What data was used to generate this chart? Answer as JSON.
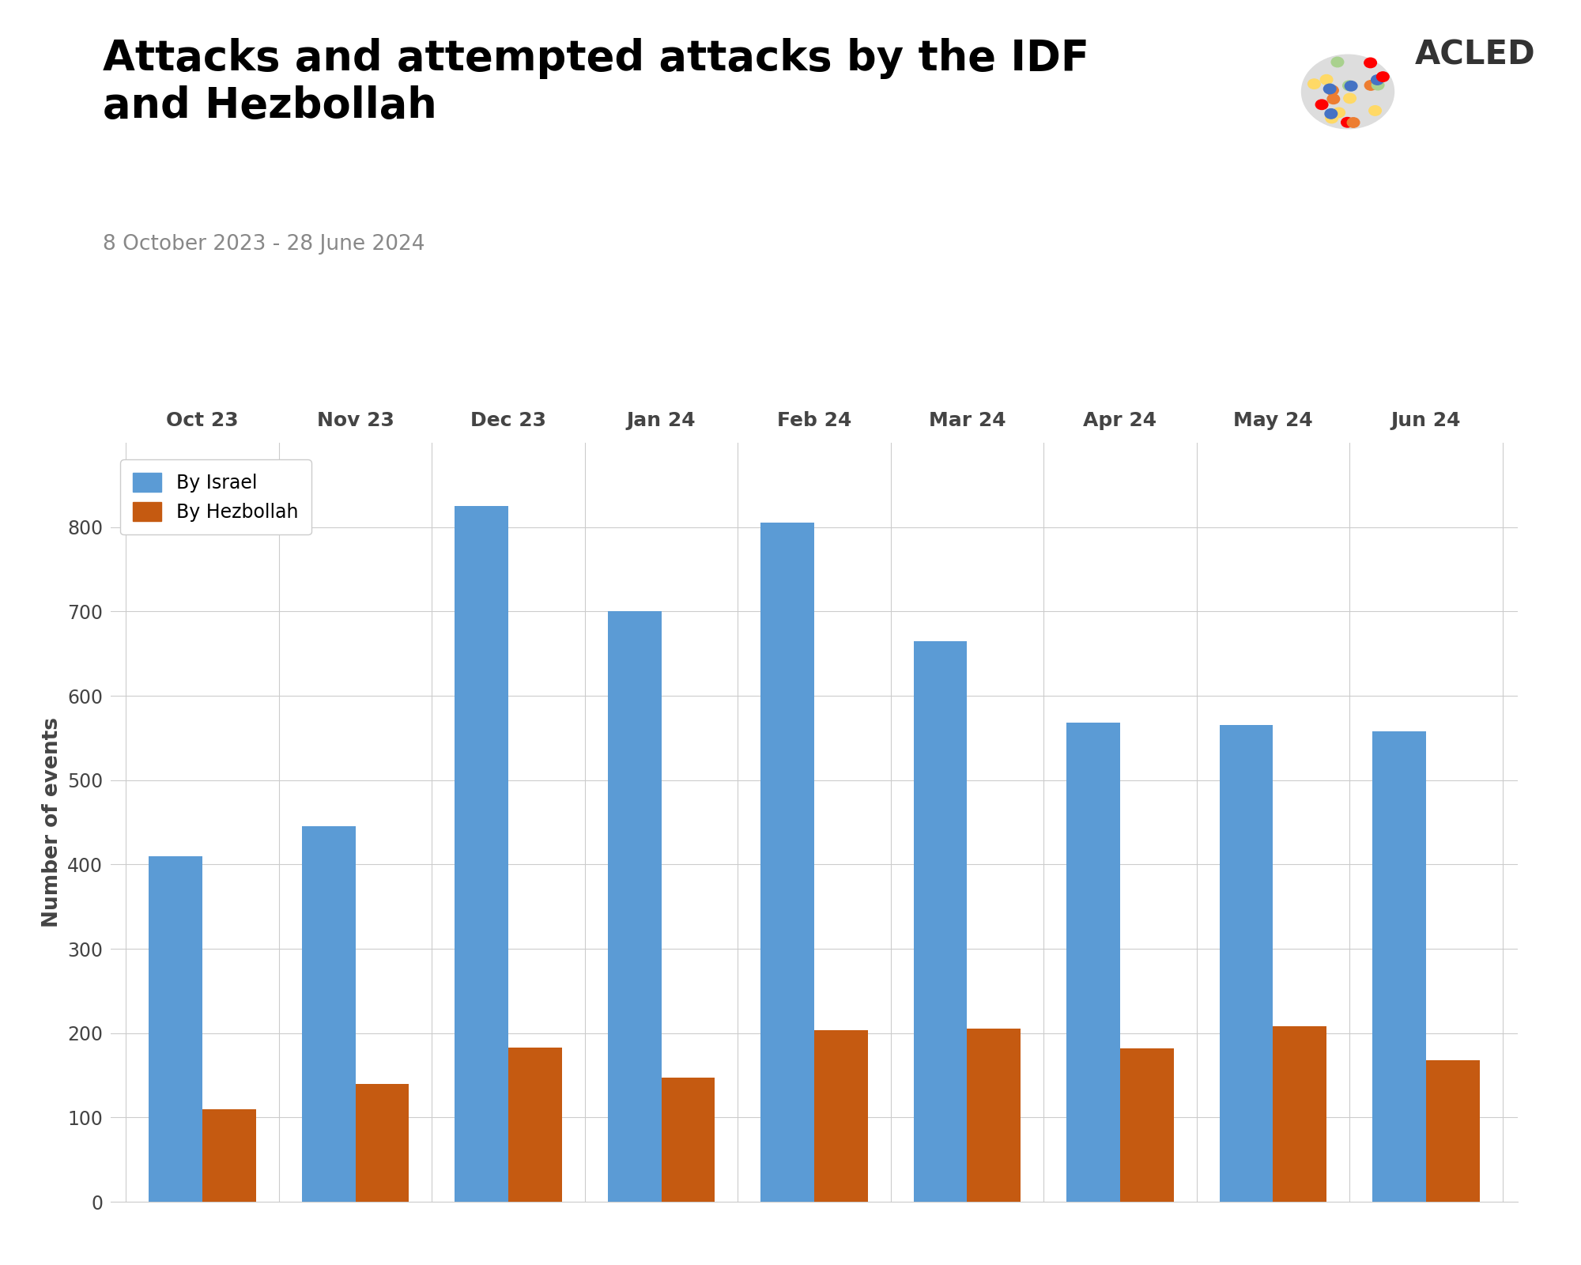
{
  "title": "Attacks and attempted attacks by the IDF\nand Hezbollah",
  "subtitle": "8 October 2023 - 28 June 2024",
  "months": [
    "Oct 23",
    "Nov 23",
    "Dec 23",
    "Jan 24",
    "Feb 24",
    "Mar 24",
    "Apr 24",
    "May 24",
    "Jun 24"
  ],
  "israel_values": [
    410,
    445,
    825,
    700,
    805,
    665,
    568,
    565,
    558
  ],
  "hezbollah_values": [
    110,
    140,
    183,
    147,
    203,
    205,
    182,
    208,
    168
  ],
  "israel_color": "#5B9BD5",
  "hezbollah_color": "#C55A11",
  "ylabel": "Number of events",
  "ylim": [
    0,
    900
  ],
  "yticks": [
    0,
    100,
    200,
    300,
    400,
    500,
    600,
    700,
    800
  ],
  "legend_labels": [
    "By Israel",
    "By Hezbollah"
  ],
  "title_fontsize": 38,
  "subtitle_fontsize": 19,
  "axis_label_fontsize": 19,
  "tick_fontsize": 17,
  "legend_fontsize": 17,
  "bar_width": 0.35,
  "background_color": "#FFFFFF",
  "grid_color": "#CCCCCC",
  "title_color": "#000000",
  "subtitle_color": "#888888",
  "axis_tick_color": "#444444"
}
